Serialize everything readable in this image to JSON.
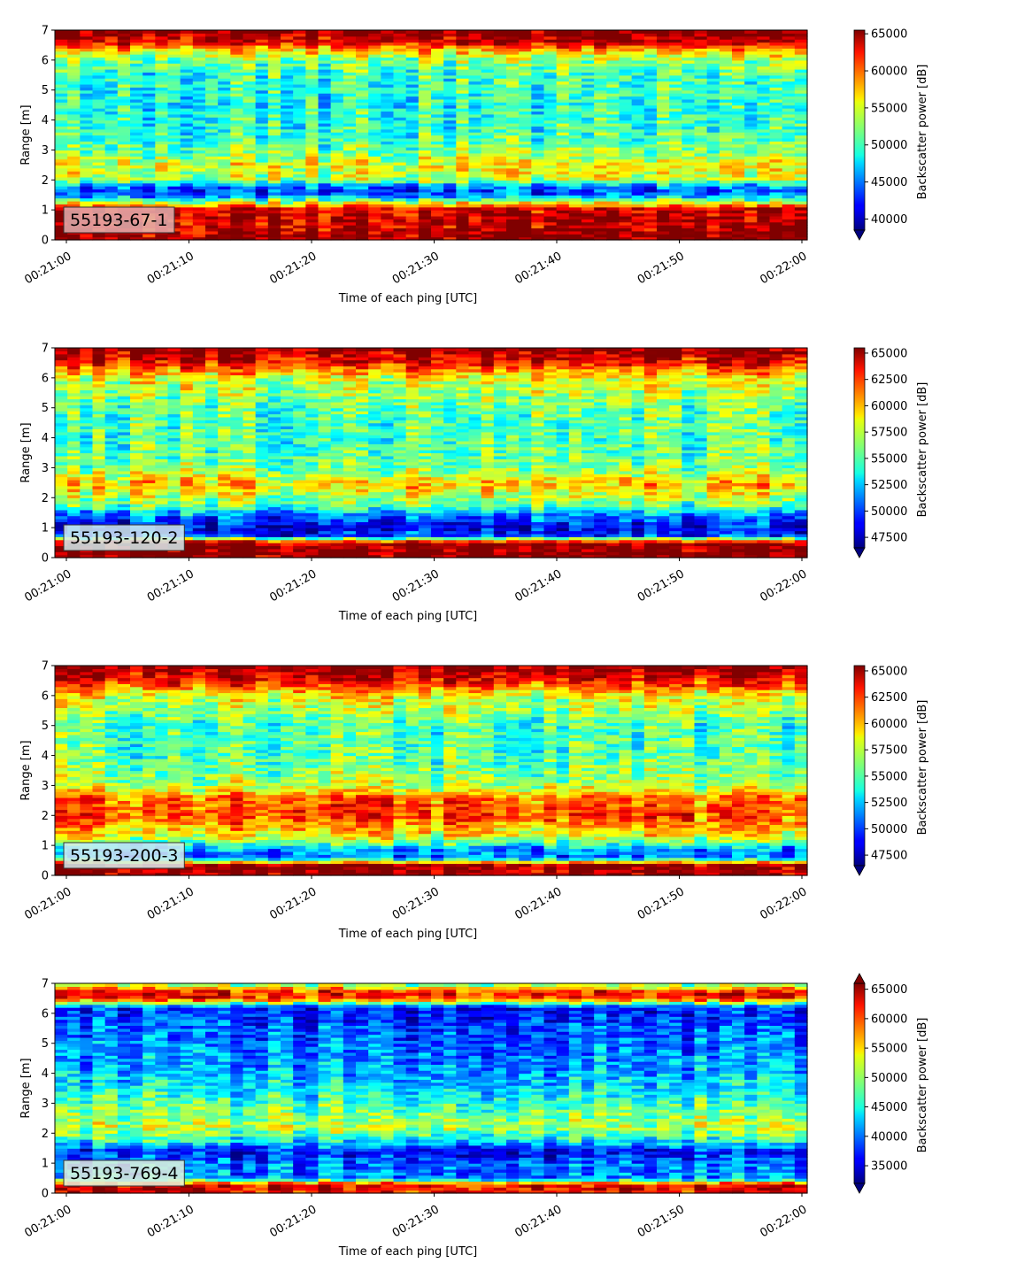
{
  "figure": {
    "xlabel": "Time of each ping [UTC]",
    "ylabel": "Range [m]",
    "cbar_label": "Backscatter power [dB]",
    "x_ticks": [
      "00:21:00",
      "00:21:10",
      "00:21:20",
      "00:21:30",
      "00:21:40",
      "00:21:50",
      "00:22:00"
    ],
    "y_ticks": [
      "0",
      "1",
      "2",
      "3",
      "4",
      "5",
      "6",
      "7"
    ]
  },
  "chart_data": [
    {
      "type": "heatmap",
      "label": "55193-67-1",
      "label_bg": "#e3b0b0",
      "xlabel": "Time of each ping [UTC]",
      "ylabel": "Range [m]",
      "xlim": [
        "00:21:00",
        "00:22:00"
      ],
      "ylim": [
        0,
        7
      ],
      "colorscale": "jet",
      "cbar_label": "Backscatter power [dB]",
      "vmin": 38500,
      "vmax": 65500,
      "cbar_ticks": [
        40000,
        45000,
        50000,
        55000,
        60000,
        65000
      ],
      "cbar_extend": "min",
      "profile": [
        [
          0.15,
          65000
        ],
        [
          0.3,
          64000
        ],
        [
          1.05,
          63000
        ],
        [
          1.2,
          56000
        ],
        [
          1.45,
          47000
        ],
        [
          1.6,
          43000
        ],
        [
          1.8,
          45000
        ],
        [
          2.0,
          53000
        ],
        [
          2.5,
          55000
        ],
        [
          2.9,
          52000
        ],
        [
          3.5,
          50000
        ],
        [
          4.5,
          49000
        ],
        [
          5.5,
          50000
        ],
        [
          6.0,
          52000
        ],
        [
          6.3,
          56000
        ],
        [
          6.6,
          63000
        ],
        [
          7.0,
          66000
        ]
      ]
    },
    {
      "type": "heatmap",
      "label": "55193-120-2",
      "label_bg": "#d4ecef",
      "xlabel": "Time of each ping [UTC]",
      "ylabel": "Range [m]",
      "xlim": [
        "00:21:00",
        "00:22:00"
      ],
      "ylim": [
        0,
        7
      ],
      "colorscale": "jet",
      "cbar_label": "Backscatter power [dB]",
      "vmin": 46500,
      "vmax": 65500,
      "cbar_ticks": [
        47500,
        50000,
        52500,
        55000,
        57500,
        60000,
        62500,
        65000
      ],
      "cbar_extend": "min",
      "profile": [
        [
          0.1,
          65500
        ],
        [
          0.5,
          65500
        ],
        [
          0.75,
          50000
        ],
        [
          1.0,
          48500
        ],
        [
          1.4,
          51000
        ],
        [
          1.8,
          56000
        ],
        [
          2.5,
          59500
        ],
        [
          3.0,
          56000
        ],
        [
          4.0,
          55000
        ],
        [
          5.0,
          55500
        ],
        [
          6.0,
          58000
        ],
        [
          6.5,
          63000
        ],
        [
          7.0,
          65500
        ]
      ]
    },
    {
      "type": "heatmap",
      "label": "55193-200-3",
      "label_bg": "#d4ecef",
      "xlabel": "Time of each ping [UTC]",
      "ylabel": "Range [m]",
      "xlim": [
        "00:21:00",
        "00:22:00"
      ],
      "ylim": [
        0,
        7
      ],
      "colorscale": "jet",
      "cbar_label": "Backscatter power [dB]",
      "vmin": 46500,
      "vmax": 65500,
      "cbar_ticks": [
        47500,
        50000,
        52500,
        55000,
        57500,
        60000,
        62500,
        65000
      ],
      "cbar_extend": "min",
      "profile": [
        [
          0.1,
          65000
        ],
        [
          0.35,
          65000
        ],
        [
          0.6,
          51000
        ],
        [
          0.9,
          52000
        ],
        [
          1.3,
          58000
        ],
        [
          2.0,
          62000
        ],
        [
          2.6,
          61000
        ],
        [
          3.0,
          57000
        ],
        [
          4.0,
          55000
        ],
        [
          5.0,
          55000
        ],
        [
          6.0,
          58000
        ],
        [
          6.5,
          63000
        ],
        [
          7.0,
          65500
        ]
      ]
    },
    {
      "type": "heatmap",
      "label": "55193-769-4",
      "label_bg": "#e4eedc",
      "xlabel": "Time of each ping [UTC]",
      "ylabel": "Range [m]",
      "xlim": [
        "00:21:00",
        "00:22:00"
      ],
      "ylim": [
        0,
        7
      ],
      "colorscale": "jet",
      "cbar_label": "Backscatter power [dB]",
      "vmin": 32000,
      "vmax": 66000,
      "cbar_ticks": [
        35000,
        40000,
        45000,
        50000,
        55000,
        60000,
        65000
      ],
      "cbar_extend": "both",
      "profile": [
        [
          0.1,
          62000
        ],
        [
          0.3,
          62000
        ],
        [
          0.5,
          41000
        ],
        [
          1.0,
          40000
        ],
        [
          1.4,
          36000
        ],
        [
          1.7,
          44000
        ],
        [
          2.2,
          51000
        ],
        [
          2.8,
          48000
        ],
        [
          3.5,
          44000
        ],
        [
          4.5,
          41000
        ],
        [
          5.5,
          39000
        ],
        [
          6.2,
          37000
        ],
        [
          6.5,
          60000
        ],
        [
          6.7,
          62000
        ],
        [
          7.0,
          48000
        ]
      ]
    }
  ]
}
